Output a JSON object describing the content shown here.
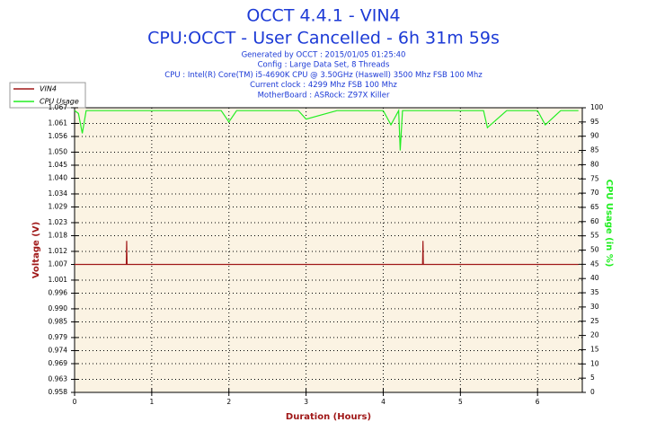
{
  "chart_data": {
    "type": "line",
    "title": "OCCT 4.4.1 - VIN4",
    "subtitle": "CPU:OCCT - User Cancelled - 6h 31m 59s",
    "info_lines": [
      "Generated by OCCT : 2015/01/05 01:25:40",
      "Config : Large Data Set, 8 Threads",
      "CPU : Intel(R) Core(TM) i5-4690K CPU @ 3.50GHz (Haswell) 3500 Mhz FSB 100 Mhz",
      "Current clock : 4299 Mhz FSB 100 Mhz",
      "MotherBoard : ASRock: Z97X Killer"
    ],
    "xlabel": "Duration (Hours)",
    "ylabel": "Voltage (V)",
    "y2label": "CPU Usage (in %)",
    "x": [
      0,
      0.05,
      0.1,
      0.15,
      0.3,
      0.5,
      0.67,
      0.675,
      0.68,
      0.9,
      1.2,
      1.5,
      1.9,
      2.0,
      2.1,
      2.5,
      2.9,
      3.0,
      3.4,
      3.6,
      3.9,
      4.0,
      4.1,
      4.2,
      4.22,
      4.25,
      4.51,
      4.515,
      4.52,
      4.8,
      5.2,
      5.3,
      5.35,
      5.6,
      6.0,
      6.1,
      6.3,
      6.53
    ],
    "xlim": [
      0,
      6.58
    ],
    "xticks": [
      0,
      1,
      2,
      3,
      4,
      5,
      6
    ],
    "ylim": [
      0.958,
      1.067
    ],
    "yticks": [
      0.958,
      0.963,
      0.969,
      0.974,
      0.979,
      0.985,
      {
        "value": 0.99,
        "label": "0.990"
      },
      0.996,
      1.001,
      1.007,
      1.012,
      1.018,
      1.023,
      1.029,
      1.034,
      {
        "value": 1.04,
        "label": "1.040"
      },
      1.045,
      {
        "value": 1.05,
        "label": "1.050"
      },
      1.056,
      1.061,
      1.067
    ],
    "y2lim": [
      0,
      100
    ],
    "y2ticks": [
      0,
      5,
      10,
      15,
      20,
      25,
      30,
      35,
      40,
      45,
      50,
      55,
      60,
      65,
      70,
      75,
      80,
      85,
      90,
      95,
      100
    ],
    "grid": true,
    "legend": "upper left",
    "series": [
      {
        "name": "VIN4",
        "color": "#a01818",
        "values": [
          1.007,
          1.007,
          1.007,
          1.007,
          1.007,
          1.007,
          1.007,
          1.016,
          1.007,
          1.007,
          1.007,
          1.007,
          1.007,
          1.007,
          1.007,
          1.007,
          1.007,
          1.007,
          1.007,
          1.007,
          1.007,
          1.007,
          1.007,
          1.007,
          1.007,
          1.007,
          1.007,
          1.016,
          1.007,
          1.007,
          1.007,
          1.007,
          1.007,
          1.007,
          1.007,
          1.007,
          1.007,
          1.007
        ]
      },
      {
        "name": "CPU Usage",
        "color": "#22ee22",
        "axis": "y2",
        "values": [
          99,
          98,
          91,
          99,
          99,
          99,
          99,
          99,
          99,
          99,
          99,
          99,
          99,
          95,
          99,
          99,
          99,
          96,
          99,
          99,
          99,
          99,
          94,
          99,
          85,
          99,
          99,
          99,
          99,
          99,
          99,
          99,
          93,
          99,
          99,
          94,
          99,
          99
        ]
      }
    ]
  }
}
